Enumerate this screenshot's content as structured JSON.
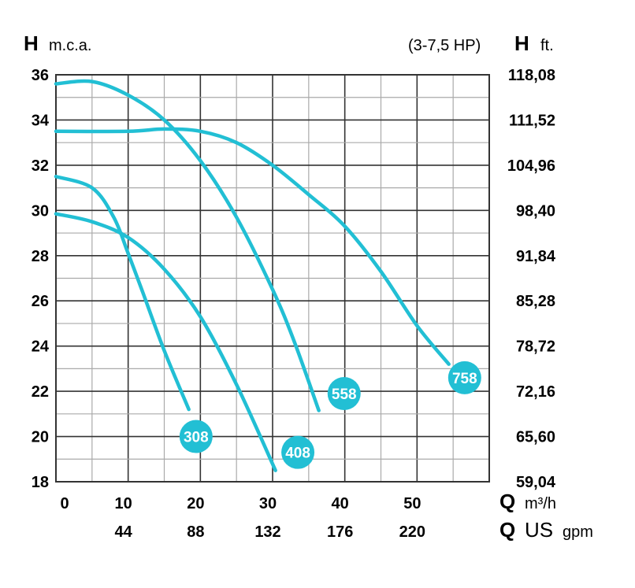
{
  "chart_data": {
    "type": "line",
    "left_axis": {
      "symbol": "H",
      "unit": "m.c.a.",
      "ylim": [
        18,
        36
      ],
      "ticks": [
        "36",
        "34",
        "32",
        "30",
        "28",
        "26",
        "24",
        "22",
        "20",
        "18"
      ]
    },
    "right_axis": {
      "symbol": "H",
      "unit": "ft.",
      "note": "(3-7,5 HP)",
      "ticks": [
        "118,08",
        "111,52",
        "104,96",
        "98,40",
        "91,84",
        "85,28",
        "78,72",
        "72,16",
        "65,60",
        "59,04"
      ]
    },
    "x_axis": {
      "symbol": "Q",
      "unit": "m³/h",
      "xlim": [
        0,
        60
      ],
      "ticks": [
        "0",
        "10",
        "20",
        "30",
        "40",
        "50"
      ]
    },
    "x_axis_secondary": {
      "symbol": "Q",
      "unit_main": "US",
      "unit_sub": "gpm",
      "ticks": [
        "44",
        "88",
        "132",
        "176",
        "220"
      ]
    },
    "grid": true,
    "curve_color": "#22bfd4",
    "series": [
      {
        "name": "558",
        "x": [
          0,
          5,
          10,
          15,
          20,
          25,
          30,
          33,
          36.4
        ],
        "y": [
          35.6,
          35.7,
          35.1,
          34,
          32.2,
          29.7,
          26.5,
          24.2,
          21.15
        ],
        "label_at": [
          39.9,
          21.9
        ]
      },
      {
        "name": "758",
        "x": [
          0,
          10,
          15,
          20,
          25,
          30,
          35,
          40,
          45,
          50,
          54.4
        ],
        "y": [
          33.5,
          33.5,
          33.6,
          33.5,
          33,
          32,
          30.7,
          29.3,
          27.3,
          24.9,
          23.2
        ],
        "label_at": [
          56.6,
          22.6
        ]
      },
      {
        "name": "308",
        "x": [
          0,
          5,
          8,
          10,
          12,
          15,
          18.4
        ],
        "y": [
          31.5,
          31,
          29.7,
          28.1,
          26.4,
          23.8,
          21.2
        ],
        "label_at": [
          19.4,
          20.0
        ]
      },
      {
        "name": "408",
        "x": [
          0,
          5,
          10,
          15,
          20,
          25,
          30.4
        ],
        "y": [
          29.85,
          29.5,
          28.8,
          27.4,
          25.3,
          22.3,
          18.5
        ],
        "label_at": [
          33.5,
          19.3
        ]
      }
    ]
  }
}
